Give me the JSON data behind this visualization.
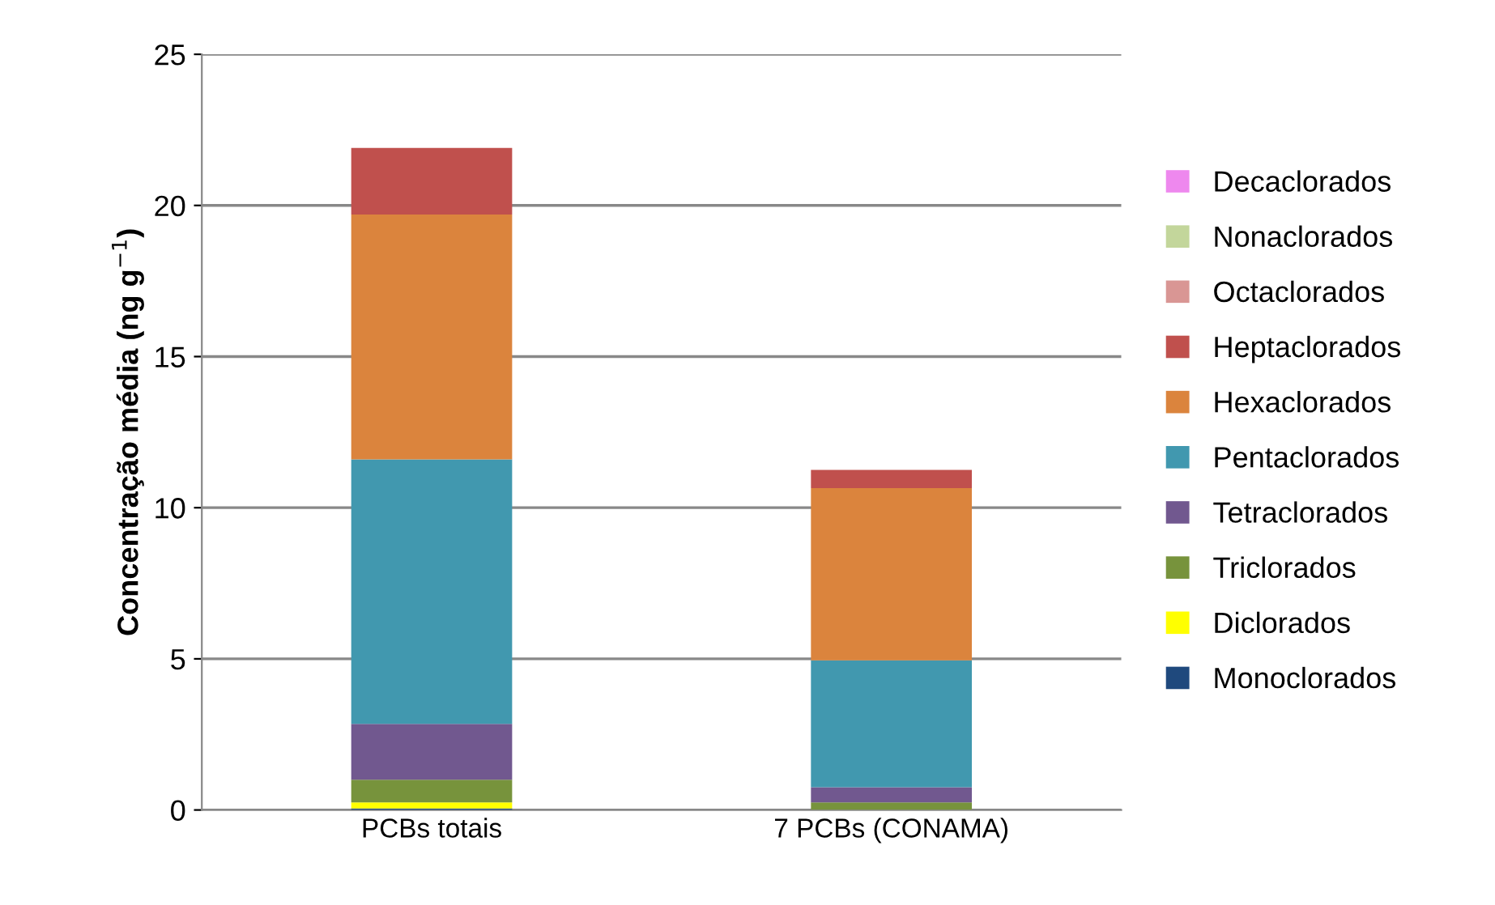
{
  "chart_data": {
    "type": "bar",
    "stacked": true,
    "ylabel": "Concentração média (ng g$^{−1}$)",
    "categories": [
      "PCBs totais",
      "7 PCBs (CONAMA)"
    ],
    "series": [
      {
        "name": "Monoclorados",
        "color": "#1f497d",
        "values": [
          0.05,
          0
        ]
      },
      {
        "name": "Diclorados",
        "color": "#ffff00",
        "values": [
          0.2,
          0
        ]
      },
      {
        "name": "Triclorados",
        "color": "#77933c",
        "values": [
          0.75,
          0.25
        ]
      },
      {
        "name": "Tetraclorados",
        "color": "#71588f",
        "values": [
          1.85,
          0.5
        ]
      },
      {
        "name": "Pentaclorados",
        "color": "#4198af",
        "values": [
          8.75,
          4.2
        ]
      },
      {
        "name": "Hexaclorados",
        "color": "#db843d",
        "values": [
          8.1,
          5.7
        ]
      },
      {
        "name": "Heptaclorados",
        "color": "#c0504d",
        "values": [
          2.2,
          0.6
        ]
      },
      {
        "name": "Octaclorados",
        "color": "#d99694",
        "values": [
          0,
          0
        ]
      },
      {
        "name": "Nonaclorados",
        "color": "#c3d69b",
        "values": [
          0,
          0
        ]
      },
      {
        "name": "Decaclorados",
        "color": "#ee88ee",
        "values": [
          0,
          0
        ]
      }
    ],
    "ylim": [
      0,
      25
    ],
    "yticks": [
      0,
      5,
      10,
      15,
      20,
      25
    ],
    "grid": "y",
    "legend": "right"
  }
}
